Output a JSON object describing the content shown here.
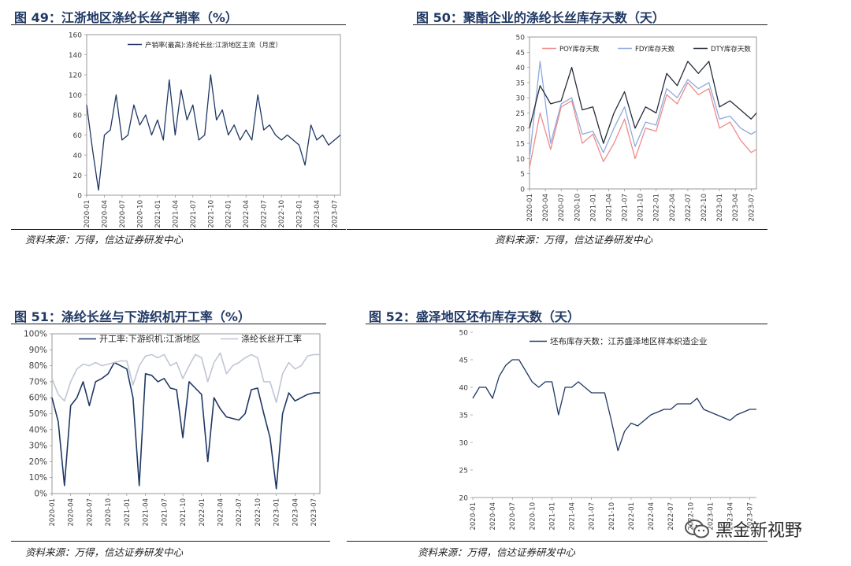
{
  "panels": [
    {
      "title": "图 49：江浙地区涤纶长丝产销率（%）",
      "source": "资料来源：万得，信达证券研发中心"
    },
    {
      "title": "图 50：聚酯企业的涤纶长丝库存天数（天）",
      "source": "资料来源：万得，信达证券研发中心"
    },
    {
      "title": "图 51：涤纶长丝与下游织机开工率（%）",
      "source": "资料来源：万得，信达证券研发中心"
    },
    {
      "title": "图 52：盛泽地区坯布库存天数（天）",
      "source": "资料来源：万得，信达证券研发中心"
    }
  ],
  "watermark": {
    "text": "黑金新视野",
    "icon": "wechat-icon"
  },
  "chart_data": [
    {
      "type": "line",
      "title": "图 49：江浙地区涤纶长丝产销率（%）",
      "ylim": [
        0,
        160
      ],
      "yticks": [
        0,
        20,
        40,
        60,
        80,
        100,
        120,
        140,
        160
      ],
      "xlim": [
        "2020-01",
        "2023-08"
      ],
      "xticks": [
        "2020-01",
        "2020-04",
        "2020-07",
        "2020-10",
        "2021-01",
        "2021-04",
        "2021-07",
        "2021-10",
        "2022-01",
        "2022-04",
        "2022-07",
        "2022-10",
        "2023-01",
        "2023-04",
        "2023-07"
      ],
      "legend_position": "top-right",
      "grid": false,
      "series": [
        {
          "name": "产销率(最高):涤纶长丝:江浙地区主流（月度）",
          "color": "#1f3864",
          "x": [
            "2020-01",
            "2020-02",
            "2020-03",
            "2020-04",
            "2020-05",
            "2020-06",
            "2020-07",
            "2020-08",
            "2020-09",
            "2020-10",
            "2020-11",
            "2020-12",
            "2021-01",
            "2021-02",
            "2021-03",
            "2021-04",
            "2021-05",
            "2021-06",
            "2021-07",
            "2021-08",
            "2021-09",
            "2021-10",
            "2021-11",
            "2021-12",
            "2022-01",
            "2022-02",
            "2022-03",
            "2022-04",
            "2022-05",
            "2022-06",
            "2022-07",
            "2022-08",
            "2022-09",
            "2022-10",
            "2022-11",
            "2022-12",
            "2023-01",
            "2023-02",
            "2023-03",
            "2023-04",
            "2023-05",
            "2023-06",
            "2023-07",
            "2023-08"
          ],
          "y": [
            90,
            45,
            5,
            60,
            65,
            100,
            55,
            60,
            90,
            70,
            80,
            60,
            75,
            55,
            115,
            60,
            105,
            75,
            90,
            55,
            60,
            120,
            75,
            85,
            60,
            70,
            55,
            65,
            55,
            100,
            65,
            70,
            60,
            55,
            60,
            55,
            50,
            30,
            70,
            55,
            60,
            50,
            55,
            60
          ]
        }
      ]
    },
    {
      "type": "line",
      "title": "图 50：聚酯企业的涤纶长丝库存天数（天）",
      "ylim": [
        0,
        50
      ],
      "yticks": [
        0,
        5,
        10,
        15,
        20,
        25,
        30,
        35,
        40,
        45,
        50
      ],
      "xlim": [
        "2020-01",
        "2023-08"
      ],
      "xticks": [
        "2020-01",
        "2020-04",
        "2020-07",
        "2020-10",
        "2021-01",
        "2021-04",
        "2021-07",
        "2021-10",
        "2022-01",
        "2022-04",
        "2022-07",
        "2022-10",
        "2023-01",
        "2023-04",
        "2023-07"
      ],
      "legend_position": "top",
      "grid": false,
      "series": [
        {
          "name": "POY库存天数",
          "color": "#f08a8a",
          "x": [
            "2020-01",
            "2020-03",
            "2020-05",
            "2020-07",
            "2020-09",
            "2020-11",
            "2021-01",
            "2021-03",
            "2021-05",
            "2021-07",
            "2021-09",
            "2021-11",
            "2022-01",
            "2022-03",
            "2022-05",
            "2022-07",
            "2022-09",
            "2022-11",
            "2023-01",
            "2023-03",
            "2023-05",
            "2023-07",
            "2023-08"
          ],
          "y": [
            7,
            25,
            13,
            27,
            29,
            15,
            18,
            9,
            15,
            23,
            10,
            20,
            19,
            31,
            28,
            35,
            31,
            33,
            20,
            22,
            16,
            12,
            13
          ]
        },
        {
          "name": "FDY库存天数",
          "color": "#8faadc",
          "x": [
            "2020-01",
            "2020-03",
            "2020-05",
            "2020-07",
            "2020-09",
            "2020-11",
            "2021-01",
            "2021-03",
            "2021-05",
            "2021-07",
            "2021-09",
            "2021-11",
            "2022-01",
            "2022-03",
            "2022-05",
            "2022-07",
            "2022-09",
            "2022-11",
            "2023-01",
            "2023-03",
            "2023-05",
            "2023-07",
            "2023-08"
          ],
          "y": [
            10,
            42,
            15,
            28,
            30,
            18,
            19,
            12,
            20,
            27,
            14,
            22,
            21,
            33,
            30,
            36,
            33,
            35,
            23,
            24,
            20,
            18,
            19
          ]
        },
        {
          "name": "DTY库存天数",
          "color": "#262c3a",
          "x": [
            "2020-01",
            "2020-03",
            "2020-05",
            "2020-07",
            "2020-09",
            "2020-11",
            "2021-01",
            "2021-03",
            "2021-05",
            "2021-07",
            "2021-09",
            "2021-11",
            "2022-01",
            "2022-03",
            "2022-05",
            "2022-07",
            "2022-09",
            "2022-11",
            "2023-01",
            "2023-03",
            "2023-05",
            "2023-07",
            "2023-08"
          ],
          "y": [
            20,
            34,
            28,
            29,
            40,
            26,
            27,
            15,
            25,
            32,
            20,
            27,
            25,
            38,
            34,
            42,
            38,
            42,
            27,
            29,
            26,
            23,
            25
          ]
        }
      ]
    },
    {
      "type": "line",
      "title": "图 51：涤纶长丝与下游织机开工率（%）",
      "ylim": [
        0,
        100
      ],
      "yticks": [
        "0%",
        "10%",
        "20%",
        "30%",
        "40%",
        "50%",
        "60%",
        "70%",
        "80%",
        "90%",
        "100%"
      ],
      "xlim": [
        "2020-01",
        "2023-08"
      ],
      "xticks": [
        "2020-01",
        "2020-04",
        "2020-07",
        "2020-10",
        "2021-01",
        "2021-04",
        "2021-07",
        "2021-10",
        "2022-01",
        "2022-04",
        "2022-07",
        "2022-10",
        "2023-01",
        "2023-04",
        "2023-07"
      ],
      "legend_position": "top",
      "grid": false,
      "series": [
        {
          "name": "开工率:下游织机:江浙地区",
          "color": "#1f3864",
          "x": [
            "2020-01",
            "2020-02",
            "2020-03",
            "2020-04",
            "2020-05",
            "2020-06",
            "2020-07",
            "2020-08",
            "2020-09",
            "2020-10",
            "2020-11",
            "2020-12",
            "2021-01",
            "2021-02",
            "2021-03",
            "2021-04",
            "2021-05",
            "2021-06",
            "2021-07",
            "2021-08",
            "2021-09",
            "2021-10",
            "2021-11",
            "2021-12",
            "2022-01",
            "2022-02",
            "2022-03",
            "2022-04",
            "2022-05",
            "2022-06",
            "2022-07",
            "2022-08",
            "2022-09",
            "2022-10",
            "2022-11",
            "2022-12",
            "2023-01",
            "2023-02",
            "2023-03",
            "2023-04",
            "2023-05",
            "2023-06",
            "2023-07",
            "2023-08"
          ],
          "y": [
            60,
            45,
            5,
            55,
            60,
            70,
            55,
            70,
            72,
            75,
            82,
            80,
            78,
            60,
            5,
            75,
            74,
            70,
            72,
            66,
            65,
            35,
            70,
            66,
            62,
            20,
            60,
            53,
            48,
            47,
            46,
            50,
            65,
            66,
            50,
            35,
            3,
            50,
            63,
            58,
            60,
            62,
            63,
            63
          ]
        },
        {
          "name": "涤纶长丝开工率",
          "color": "#c0c6d4",
          "x": [
            "2020-01",
            "2020-02",
            "2020-03",
            "2020-04",
            "2020-05",
            "2020-06",
            "2020-07",
            "2020-08",
            "2020-09",
            "2020-10",
            "2020-11",
            "2020-12",
            "2021-01",
            "2021-02",
            "2021-03",
            "2021-04",
            "2021-05",
            "2021-06",
            "2021-07",
            "2021-08",
            "2021-09",
            "2021-10",
            "2021-11",
            "2021-12",
            "2022-01",
            "2022-02",
            "2022-03",
            "2022-04",
            "2022-05",
            "2022-06",
            "2022-07",
            "2022-08",
            "2022-09",
            "2022-10",
            "2022-11",
            "2022-12",
            "2023-01",
            "2023-02",
            "2023-03",
            "2023-04",
            "2023-05",
            "2023-06",
            "2023-07",
            "2023-08"
          ],
          "y": [
            72,
            62,
            58,
            70,
            78,
            81,
            80,
            82,
            80,
            81,
            82,
            83,
            83,
            68,
            80,
            86,
            87,
            85,
            87,
            80,
            82,
            72,
            80,
            87,
            85,
            70,
            82,
            88,
            75,
            80,
            82,
            85,
            87,
            85,
            70,
            70,
            57,
            75,
            82,
            78,
            80,
            86,
            87,
            87
          ]
        }
      ]
    },
    {
      "type": "line",
      "title": "图 52：盛泽地区坯布库存天数（天）",
      "ylim": [
        20,
        50
      ],
      "yticks": [
        20,
        25,
        30,
        35,
        40,
        45,
        50
      ],
      "xlim": [
        "2020-01",
        "2023-08"
      ],
      "xticks": [
        "2020-01",
        "2020-04",
        "2020-07",
        "2020-10",
        "2021-01",
        "2021-04",
        "2021-07",
        "2021-10",
        "2022-01",
        "2022-04",
        "2022-07",
        "2022-10",
        "2023-01",
        "2023-04",
        "2023-07"
      ],
      "legend_position": "top",
      "grid": false,
      "series": [
        {
          "name": "坯布库存天数：江苏盛泽地区样本织造企业",
          "color": "#1f3864",
          "x": [
            "2020-01",
            "2020-02",
            "2020-03",
            "2020-04",
            "2020-05",
            "2020-06",
            "2020-07",
            "2020-08",
            "2020-09",
            "2020-10",
            "2020-11",
            "2020-12",
            "2021-01",
            "2021-02",
            "2021-03",
            "2021-04",
            "2021-05",
            "2021-06",
            "2021-07",
            "2021-08",
            "2021-09",
            "2021-10",
            "2021-11",
            "2021-12",
            "2022-01",
            "2022-02",
            "2022-03",
            "2022-04",
            "2022-05",
            "2022-06",
            "2022-07",
            "2022-08",
            "2022-09",
            "2022-10",
            "2022-11",
            "2022-12",
            "2023-01",
            "2023-02",
            "2023-03",
            "2023-04",
            "2023-05",
            "2023-06",
            "2023-07",
            "2023-08"
          ],
          "y": [
            38,
            40,
            40,
            38,
            42,
            44,
            45,
            45,
            43,
            41,
            40,
            41,
            41,
            35,
            40,
            40,
            41,
            40,
            39,
            39,
            39,
            34,
            28.5,
            32,
            33.5,
            33,
            34,
            35,
            35.5,
            36,
            36,
            37,
            37,
            37,
            38,
            36,
            35.5,
            35,
            34.5,
            34,
            35,
            35.5,
            36,
            36
          ]
        }
      ]
    }
  ]
}
